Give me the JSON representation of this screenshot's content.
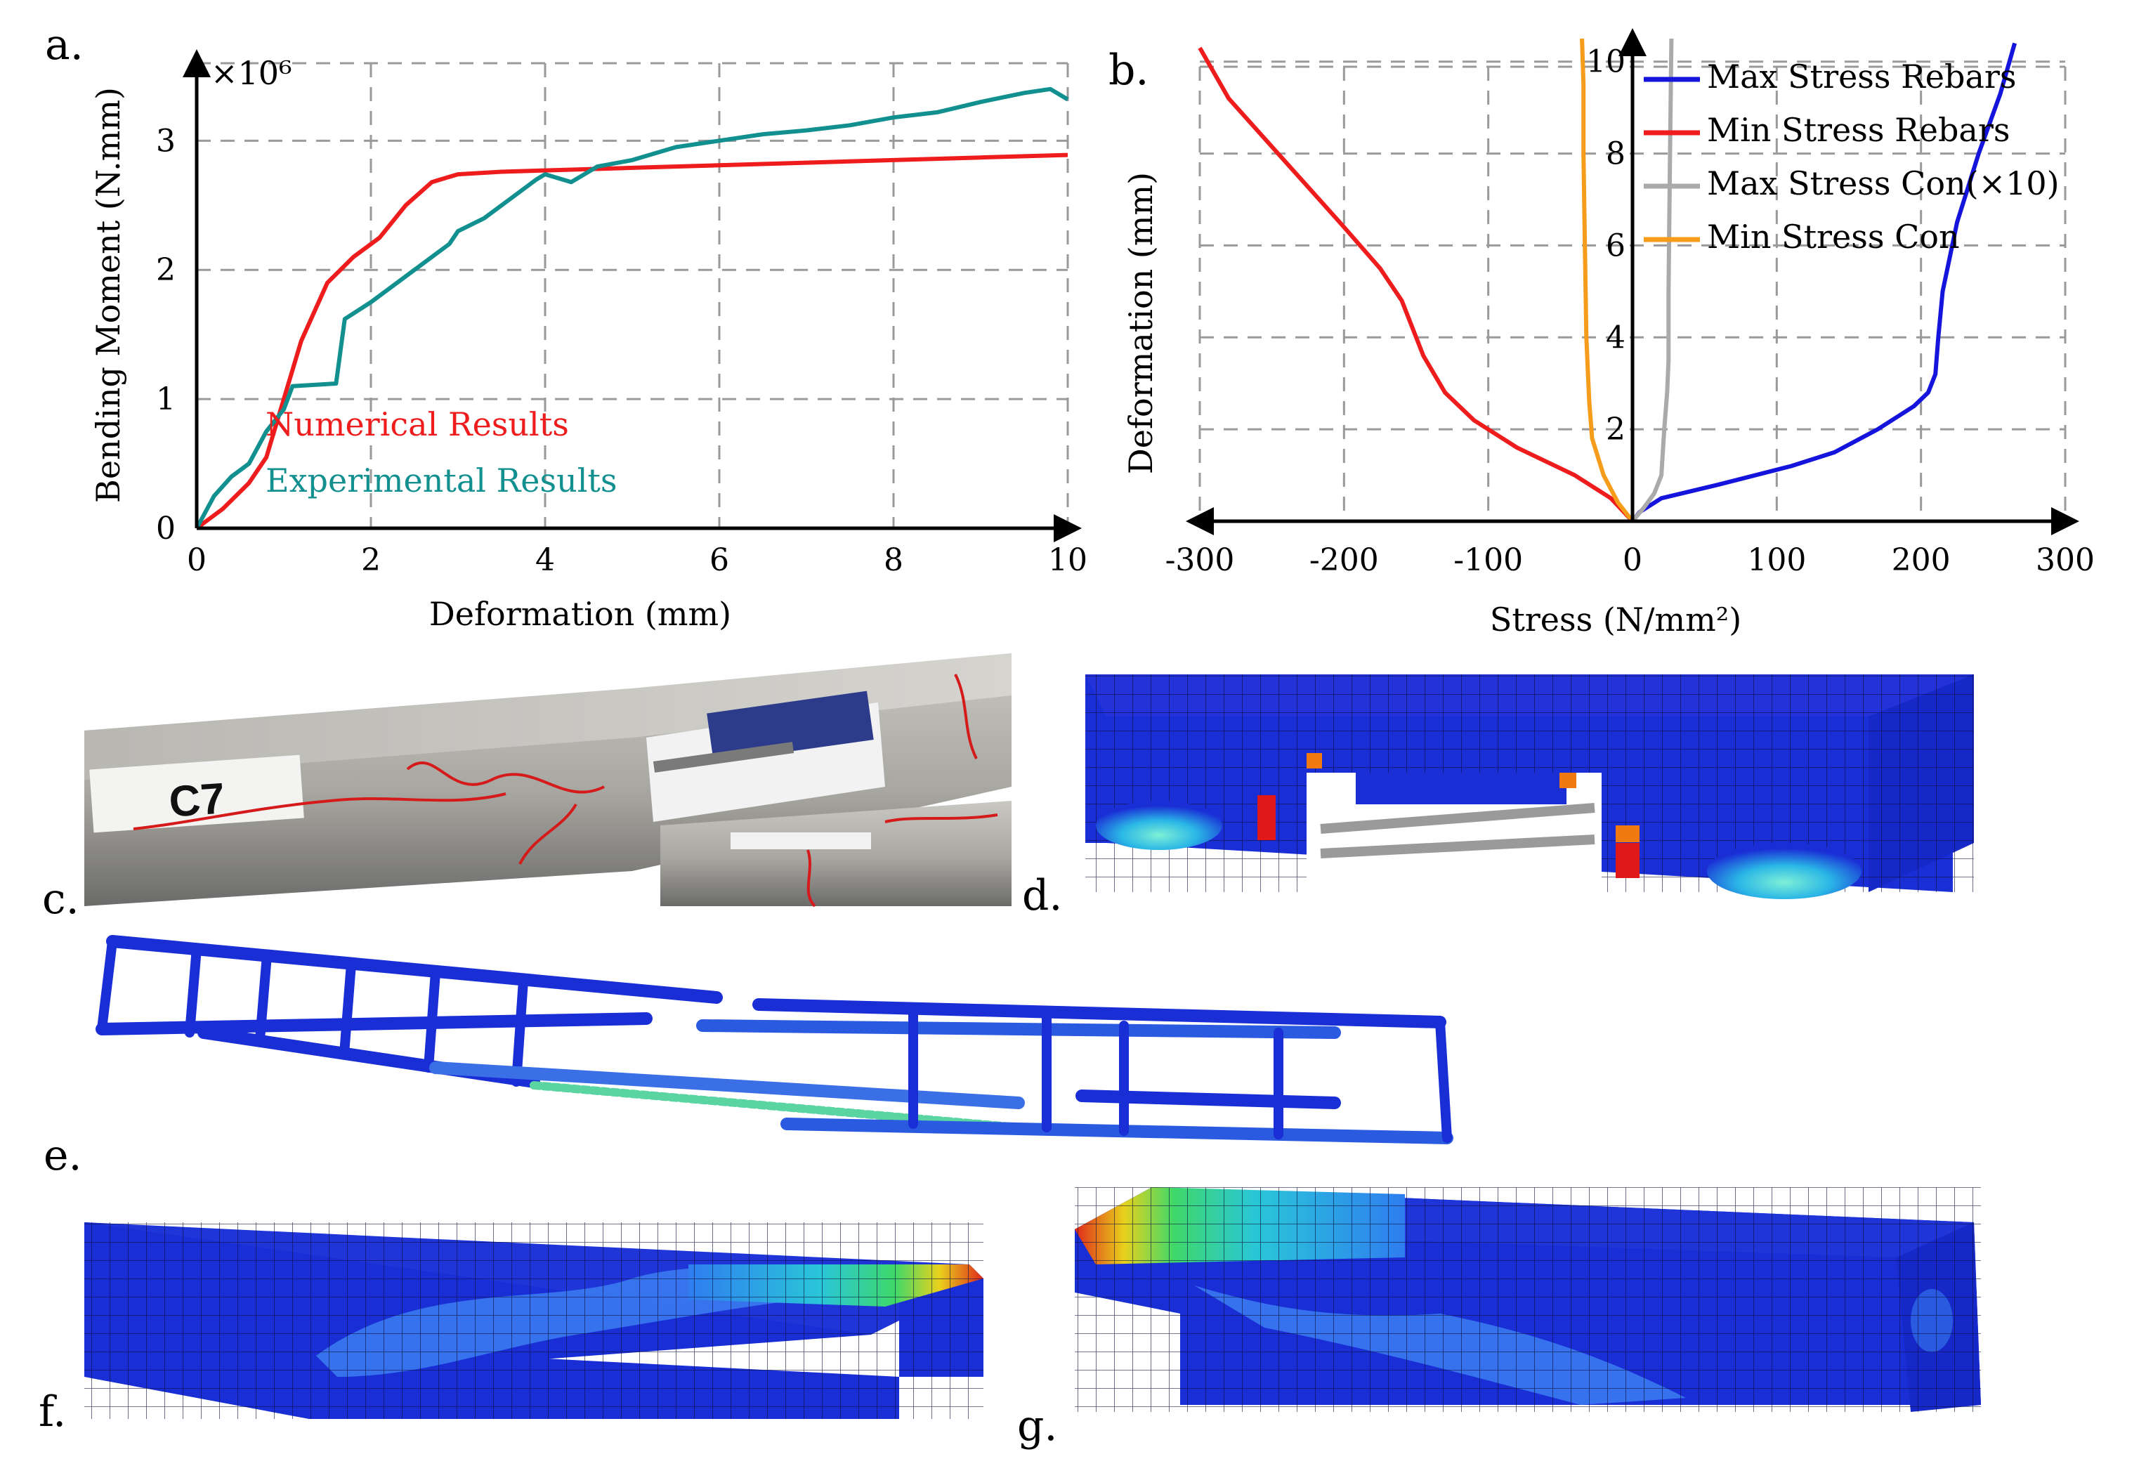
{
  "panels": {
    "a": "a.",
    "b": "b.",
    "c": "c.",
    "d": "d.",
    "e": "e.",
    "f": "f.",
    "g": "g."
  },
  "photo_c": {
    "specimen_label": "C7"
  },
  "colors": {
    "numerical": "#ee1c1c",
    "experimental": "#129090",
    "max_rebar": "#1414dd",
    "min_rebar": "#ee1c1c",
    "max_con": "#aaaaaa",
    "min_con": "#f59c1a",
    "fem_blue": "#1a2ed6"
  },
  "chart_data": [
    {
      "id": "a",
      "type": "line",
      "xlabel": "Deformation (mm)",
      "ylabel": "Bending Moment (N.mm)",
      "multiplier": "×10⁶",
      "xlim": [
        0,
        10
      ],
      "ylim": [
        0,
        3.6
      ],
      "xticks": [
        "0",
        "2",
        "4",
        "6",
        "8",
        "10"
      ],
      "xtick_values": [
        0,
        2,
        4,
        6,
        8,
        10
      ],
      "yticks": [
        "0",
        "1",
        "2",
        "3"
      ],
      "ytick_values": [
        0,
        1,
        2,
        3
      ],
      "grid": true,
      "series": [
        {
          "name": "Numerical Results",
          "color": "#ee1c1c",
          "x": [
            0,
            0.3,
            0.6,
            0.8,
            1.0,
            1.2,
            1.5,
            1.8,
            2.1,
            2.4,
            2.7,
            3.0,
            3.5,
            4.0,
            5.0,
            6.0,
            7.0,
            8.0,
            9.0,
            10.0
          ],
          "y": [
            0,
            0.15,
            0.35,
            0.55,
            1.0,
            1.45,
            1.9,
            2.1,
            2.25,
            2.5,
            2.68,
            2.74,
            2.76,
            2.77,
            2.79,
            2.81,
            2.83,
            2.85,
            2.87,
            2.89
          ]
        },
        {
          "name": "Experimental Results",
          "color": "#129090",
          "x": [
            0,
            0.2,
            0.4,
            0.6,
            0.8,
            1.0,
            1.1,
            1.6,
            1.7,
            2.0,
            2.5,
            2.9,
            3.0,
            3.3,
            3.6,
            3.9,
            4.0,
            4.3,
            4.6,
            5.0,
            5.5,
            6.0,
            6.5,
            7.0,
            7.5,
            8.0,
            8.5,
            9.0,
            9.5,
            9.8,
            10.0
          ],
          "y": [
            0,
            0.25,
            0.4,
            0.5,
            0.75,
            0.92,
            1.1,
            1.12,
            1.62,
            1.75,
            2.0,
            2.2,
            2.3,
            2.4,
            2.55,
            2.7,
            2.74,
            2.68,
            2.8,
            2.85,
            2.95,
            3.0,
            3.05,
            3.08,
            3.12,
            3.18,
            3.22,
            3.3,
            3.37,
            3.4,
            3.32
          ]
        }
      ]
    },
    {
      "id": "b",
      "type": "line",
      "xlabel": "Stress (N/mm²)",
      "ylabel": "Deformation (mm)",
      "xlim": [
        -300,
        300
      ],
      "ylim": [
        0,
        10.5
      ],
      "xticks": [
        "-300",
        "-200",
        "-100",
        "0",
        "100",
        "200",
        "300"
      ],
      "xtick_values": [
        -300,
        -200,
        -100,
        0,
        100,
        200,
        300
      ],
      "yticks": [
        "2",
        "4",
        "6",
        "8",
        "10"
      ],
      "ytick_values": [
        2,
        4,
        6,
        8,
        10
      ],
      "grid": true,
      "legend": "top-right",
      "series": [
        {
          "name": "Max Stress Rebars",
          "color": "#1414dd",
          "x": [
            0,
            5,
            20,
            60,
            110,
            140,
            170,
            195,
            205,
            210,
            212,
            215,
            225,
            240,
            255,
            265
          ],
          "y": [
            0,
            0.2,
            0.5,
            0.8,
            1.2,
            1.5,
            2.0,
            2.5,
            2.8,
            3.2,
            4.0,
            5.0,
            6.5,
            8.0,
            9.3,
            10.4
          ]
        },
        {
          "name": "Min Stress Rebars",
          "color": "#ee1c1c",
          "x": [
            0,
            -15,
            -40,
            -80,
            -110,
            -130,
            -145,
            -160,
            -175,
            -200,
            -240,
            -280,
            -300
          ],
          "y": [
            0,
            0.5,
            1.0,
            1.6,
            2.2,
            2.8,
            3.6,
            4.8,
            5.5,
            6.4,
            7.8,
            9.2,
            10.3
          ]
        },
        {
          "name": "Max Stress Con(×10)",
          "color": "#aaaaaa",
          "x": [
            0,
            8,
            15,
            20,
            22,
            24,
            25,
            25,
            26,
            27
          ],
          "y": [
            0,
            0.3,
            0.6,
            1.0,
            2.0,
            2.8,
            3.5,
            5.0,
            8.0,
            10.5
          ]
        },
        {
          "name": "Min Stress Con",
          "color": "#f59c1a",
          "x": [
            0,
            -10,
            -20,
            -28,
            -30,
            -32,
            -33,
            -34,
            -34,
            -35
          ],
          "y": [
            0,
            0.4,
            1.0,
            1.8,
            2.6,
            4.0,
            6.0,
            8.0,
            9.5,
            10.5
          ]
        }
      ]
    }
  ]
}
